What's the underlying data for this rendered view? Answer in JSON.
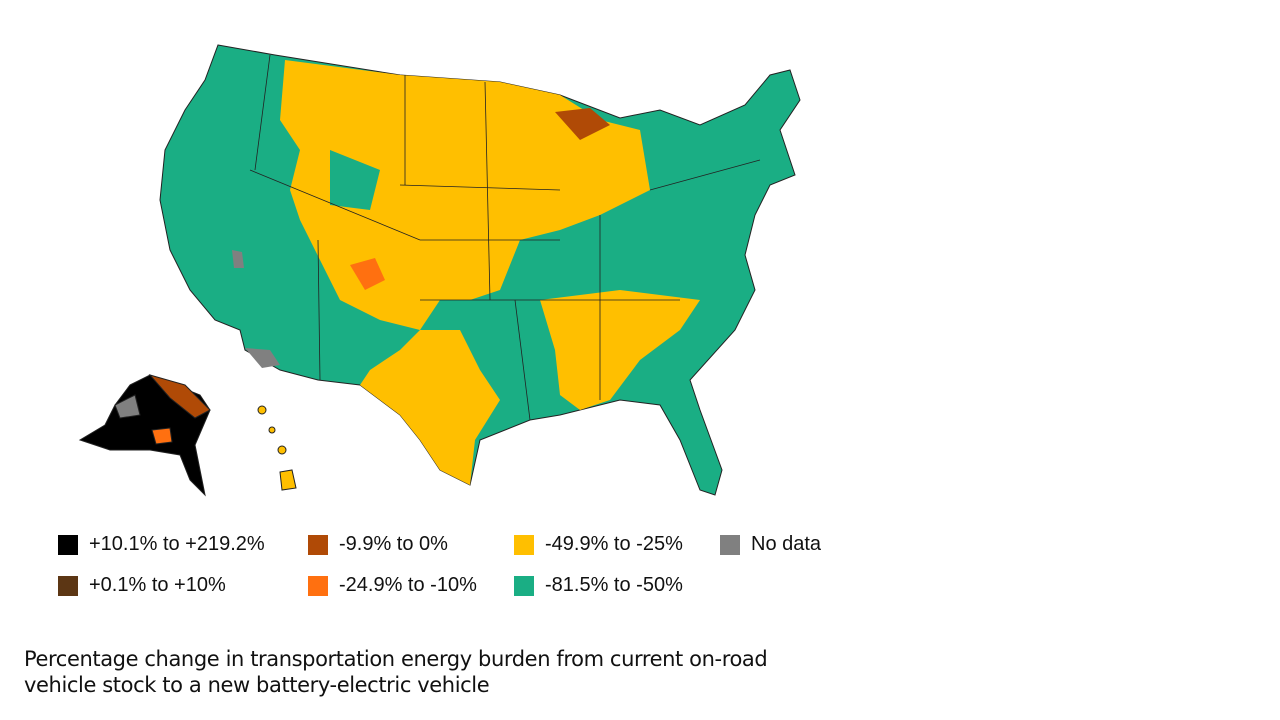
{
  "map": {
    "title": "Percentage change in transportation energy burden from current on-road vehicle stock to a new battery-electric vehicle",
    "region": "United States (contiguous, Alaska, Hawaii) by county",
    "legend": [
      {
        "label": "+10.1% to +219.2%",
        "color": "#000000"
      },
      {
        "label": "+0.1% to +10%",
        "color": "#5c3614"
      },
      {
        "label": "-9.9% to 0%",
        "color": "#b04a06"
      },
      {
        "label": "-24.9% to -10%",
        "color": "#ff7010"
      },
      {
        "label": "-49.9% to -25%",
        "color": "#ffbf00"
      },
      {
        "label": "-81.5% to -50%",
        "color": "#1aae84"
      },
      {
        "label": "No data",
        "color": "#808080"
      }
    ]
  },
  "caption": {
    "line1": "Percentage change in transportation energy burden from current on-road",
    "line2": "vehicle stock to a new battery-electric vehicle"
  }
}
